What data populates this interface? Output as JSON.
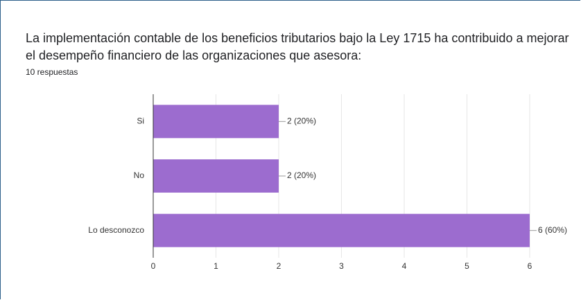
{
  "chart_data": {
    "type": "bar",
    "orientation": "horizontal",
    "title": "La implementación contable de los beneficios tributarios bajo la Ley 1715 ha contribuido a mejorar el desempeño financiero de las organizaciones que asesora:",
    "subtitle": "10 respuestas",
    "categories": [
      "Si",
      "No",
      "Lo desconozco"
    ],
    "values": [
      2,
      2,
      6
    ],
    "value_labels": [
      "2 (20%)",
      "2 (20%)",
      "6 (60%)"
    ],
    "color": "#9c6ccf",
    "xlim": [
      0,
      6
    ],
    "xticks": [
      0,
      1,
      2,
      3,
      4,
      5,
      6
    ],
    "grid": true
  }
}
